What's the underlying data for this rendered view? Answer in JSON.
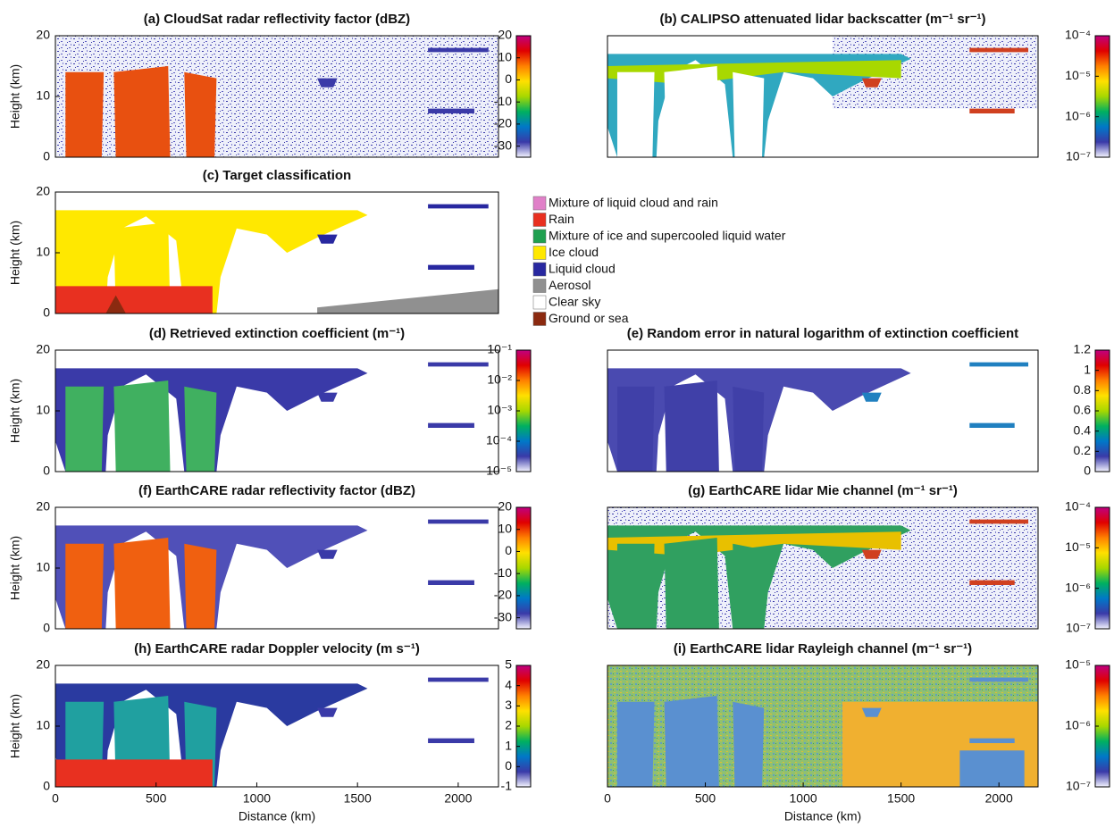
{
  "chart_data": [
    {
      "type": "heatmap",
      "title": "(a) CloudSat radar reflectivity factor (dBZ)",
      "ylabel": "Height (km)",
      "ylim": [
        0,
        20
      ],
      "yticks": [
        0,
        10,
        20
      ],
      "colorbar": {
        "lim": [
          -35,
          20
        ],
        "ticks": [
          20,
          10,
          0,
          -10,
          -20,
          -30
        ],
        "colors": [
          "#f4f4ff",
          "#3a3aa8",
          "#0078c8",
          "#00b060",
          "#a8d800",
          "#ffe000",
          "#ff8000",
          "#e00000",
          "#c00080"
        ]
      }
    },
    {
      "type": "heatmap",
      "title": "(b) CALIPSO attenuated lidar backscatter (m⁻¹ sr⁻¹)",
      "ylim": [
        0,
        20
      ],
      "colorbar": {
        "log": true,
        "lim": [
          1e-07,
          0.0001
        ],
        "ticks": [
          {
            "value": 0.0001,
            "label": "10⁻⁴"
          },
          {
            "value": 1e-05,
            "label": "10⁻⁵"
          },
          {
            "value": 1e-06,
            "label": "10⁻⁶"
          },
          {
            "value": 1e-07,
            "label": "10⁻⁷"
          }
        ],
        "colors": [
          "#f4f4ff",
          "#3a3aa8",
          "#0078c8",
          "#00b060",
          "#a8d800",
          "#ffe000",
          "#ff8000",
          "#e00000",
          "#c00080"
        ]
      }
    },
    {
      "type": "classification",
      "title": "(c) Target classification",
      "ylabel": "Height (km)",
      "ylim": [
        0,
        20
      ],
      "yticks": [
        0,
        10,
        20
      ],
      "classes": [
        {
          "name": "Mixture of liquid cloud and rain",
          "color": "#e080c8"
        },
        {
          "name": "Rain",
          "color": "#e83020"
        },
        {
          "name": "Mixture of ice and supercooled liquid water",
          "color": "#20a050"
        },
        {
          "name": "Ice cloud",
          "color": "#ffe800"
        },
        {
          "name": "Liquid cloud",
          "color": "#2828a0"
        },
        {
          "name": "Aerosol",
          "color": "#909090"
        },
        {
          "name": "Clear sky",
          "color": "#ffffff"
        },
        {
          "name": "Ground or sea",
          "color": "#8b2a10"
        }
      ]
    },
    {
      "type": "heatmap",
      "title": "(d) Retrieved extinction coefficient (m⁻¹)",
      "ylabel": "Height (km)",
      "ylim": [
        0,
        20
      ],
      "yticks": [
        0,
        10,
        20
      ],
      "colorbar": {
        "log": true,
        "lim": [
          1e-05,
          0.1
        ],
        "ticks": [
          {
            "value": 0.1,
            "label": "10⁻¹"
          },
          {
            "value": 0.01,
            "label": "10⁻²"
          },
          {
            "value": 0.001,
            "label": "10⁻³"
          },
          {
            "value": 0.0001,
            "label": "10⁻⁴"
          },
          {
            "value": 1e-05,
            "label": "10⁻⁵"
          }
        ],
        "colors": [
          "#f4f4ff",
          "#3a3aa8",
          "#0078c8",
          "#00b060",
          "#a8d800",
          "#ffe000",
          "#ff8000",
          "#e00000",
          "#c00080"
        ]
      }
    },
    {
      "type": "heatmap",
      "title": "(e) Random error in natural logarithm of extinction coefficient",
      "ylim": [
        0,
        20
      ],
      "colorbar": {
        "lim": [
          0,
          1.2
        ],
        "ticks": [
          1.2,
          1,
          0.8,
          0.6,
          0.4,
          0.2,
          0
        ],
        "colors": [
          "#f4f4ff",
          "#3a3aa8",
          "#0078c8",
          "#00b060",
          "#a8d800",
          "#ffe000",
          "#ff8000",
          "#e00000",
          "#c00080"
        ]
      }
    },
    {
      "type": "heatmap",
      "title": "(f) EarthCARE radar reflectivity factor (dBZ)",
      "ylabel": "Height (km)",
      "ylim": [
        0,
        20
      ],
      "yticks": [
        0,
        10,
        20
      ],
      "colorbar": {
        "lim": [
          -35,
          20
        ],
        "ticks": [
          20,
          10,
          0,
          -10,
          -20,
          -30
        ],
        "colors": [
          "#f4f4ff",
          "#3a3aa8",
          "#0078c8",
          "#00b060",
          "#a8d800",
          "#ffe000",
          "#ff8000",
          "#e00000",
          "#c00080"
        ]
      }
    },
    {
      "type": "heatmap",
      "title": "(g) EarthCARE lidar Mie channel (m⁻¹ sr⁻¹)",
      "ylim": [
        0,
        20
      ],
      "colorbar": {
        "log": true,
        "lim": [
          1e-07,
          0.0001
        ],
        "ticks": [
          {
            "value": 0.0001,
            "label": "10⁻⁴"
          },
          {
            "value": 1e-05,
            "label": "10⁻⁵"
          },
          {
            "value": 1e-06,
            "label": "10⁻⁶"
          },
          {
            "value": 1e-07,
            "label": "10⁻⁷"
          }
        ],
        "colors": [
          "#f4f4ff",
          "#3a3aa8",
          "#0078c8",
          "#00b060",
          "#a8d800",
          "#ffe000",
          "#ff8000",
          "#e00000",
          "#c00080"
        ]
      }
    },
    {
      "type": "heatmap",
      "title": "(h) EarthCARE radar Doppler velocity (m s⁻¹)",
      "ylabel": "Height (km)",
      "xlabel": "Distance (km)",
      "xlim": [
        0,
        2200
      ],
      "xticks": [
        0,
        500,
        1000,
        1500,
        2000
      ],
      "ylim": [
        0,
        20
      ],
      "yticks": [
        0,
        10,
        20
      ],
      "colorbar": {
        "lim": [
          -1,
          5
        ],
        "ticks": [
          5,
          4,
          3,
          2,
          1,
          0,
          -1
        ],
        "colors": [
          "#f4f4ff",
          "#3a3aa8",
          "#0078c8",
          "#00b060",
          "#a8d800",
          "#ffe000",
          "#ff8000",
          "#e00000",
          "#c00080"
        ]
      }
    },
    {
      "type": "heatmap",
      "title": "(i) EarthCARE lidar Rayleigh channel (m⁻¹ sr⁻¹)",
      "xlabel": "Distance (km)",
      "xlim": [
        0,
        2200
      ],
      "xticks": [
        0,
        500,
        1000,
        1500,
        2000
      ],
      "ylim": [
        0,
        20
      ],
      "colorbar": {
        "log": true,
        "lim": [
          1e-07,
          1e-05
        ],
        "ticks": [
          {
            "value": 1e-05,
            "label": "10⁻⁵"
          },
          {
            "value": 1e-06,
            "label": "10⁻⁶"
          },
          {
            "value": 1e-07,
            "label": "10⁻⁷"
          }
        ],
        "colors": [
          "#f4f4ff",
          "#3a3aa8",
          "#0078c8",
          "#00b060",
          "#a8d800",
          "#ffe000",
          "#ff8000",
          "#e00000",
          "#c00080"
        ]
      }
    }
  ]
}
